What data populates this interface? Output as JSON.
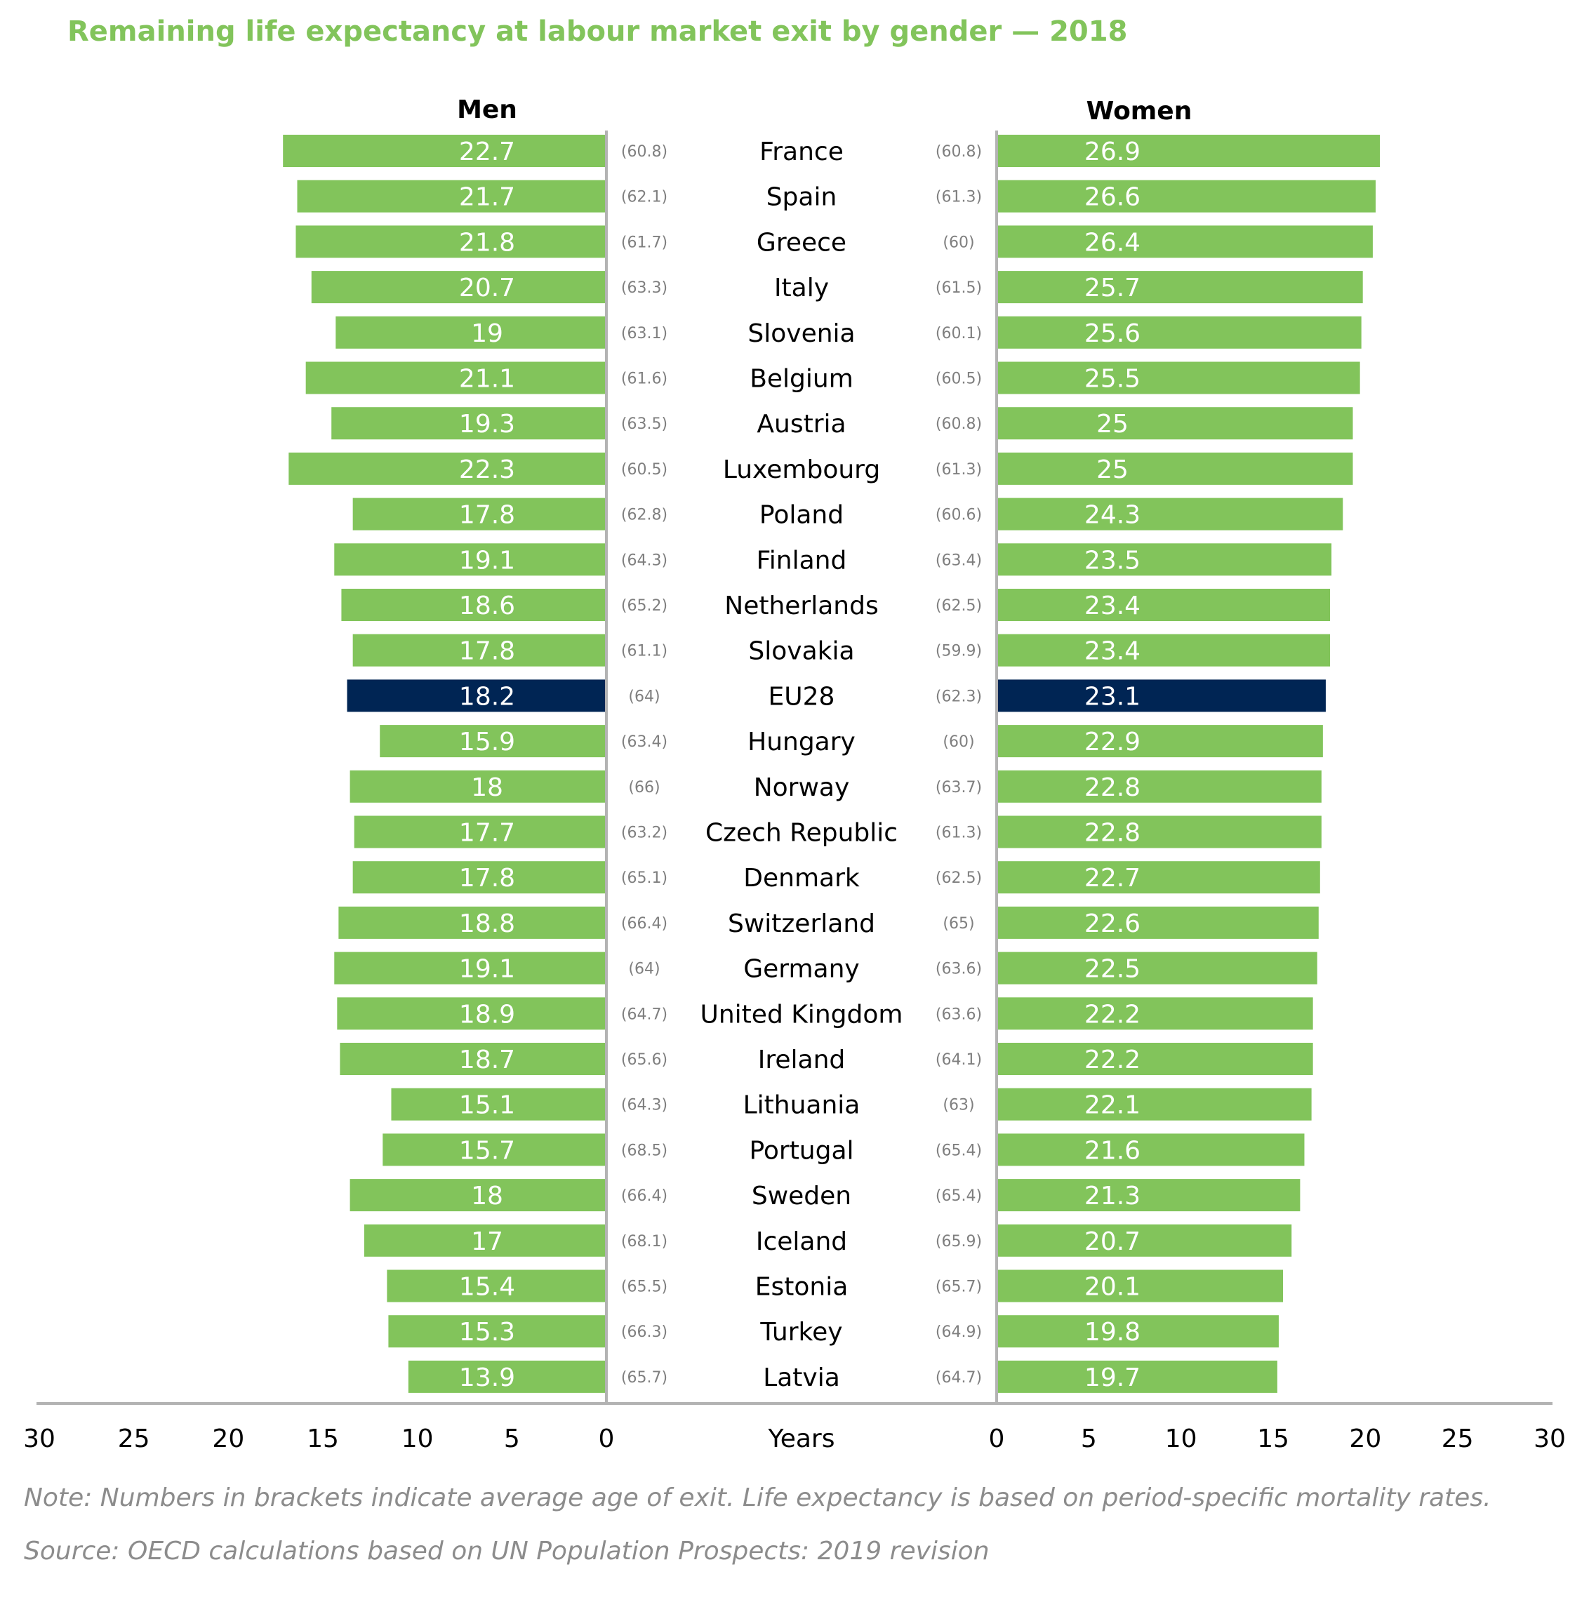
{
  "colors": {
    "accent": "#82c45b",
    "highlight": "#002554",
    "axis": "#b3b3b3",
    "muted": "#7f7f7f",
    "text": "#000000"
  },
  "chart_data": {
    "type": "bar",
    "title": "Remaining life expectancy at labour market exit by gender — 2018",
    "xlabel": "Years",
    "xlim": [
      0,
      30
    ],
    "x_ticks": [
      "30",
      "25",
      "20",
      "15",
      "10",
      "5",
      "0",
      "0",
      "5",
      "10",
      "15",
      "20",
      "25",
      "30"
    ],
    "grid": false,
    "legend": "none",
    "highlighted_category": "EU28",
    "categories": [
      "France",
      "Spain",
      "Greece",
      "Italy",
      "Slovenia",
      "Belgium",
      "Austria",
      "Luxembourg",
      "Poland",
      "Finland",
      "Netherlands",
      "Slovakia",
      "EU28",
      "Hungary",
      "Norway",
      "Czech Republic",
      "Denmark",
      "Switzerland",
      "Germany",
      "United Kingdom",
      "Ireland",
      "Lithuania",
      "Portugal",
      "Sweden",
      "Iceland",
      "Estonia",
      "Turkey",
      "Latvia"
    ],
    "series": [
      {
        "name": "Men",
        "values": [
          22.7,
          21.7,
          21.8,
          20.7,
          19,
          21.1,
          19.3,
          22.3,
          17.8,
          19.1,
          18.6,
          17.8,
          18.2,
          15.9,
          18,
          17.7,
          17.8,
          18.8,
          19.1,
          18.9,
          18.7,
          15.1,
          15.7,
          18,
          17,
          15.4,
          15.3,
          13.9
        ],
        "value_labels": [
          "22.7",
          "21.7",
          "21.8",
          "20.7",
          "19",
          "21.1",
          "19.3",
          "22.3",
          "17.8",
          "19.1",
          "18.6",
          "17.8",
          "18.2",
          "15.9",
          "18",
          "17.7",
          "17.8",
          "18.8",
          "19.1",
          "18.9",
          "18.7",
          "15.1",
          "15.7",
          "18",
          "17",
          "15.4",
          "15.3",
          "13.9"
        ],
        "exit_age_labels": [
          "(60.8)",
          "(62.1)",
          "(61.7)",
          "(63.3)",
          "(63.1)",
          "(61.6)",
          "(63.5)",
          "(60.5)",
          "(62.8)",
          "(64.3)",
          "(65.2)",
          "(61.1)",
          "(64)",
          "(63.4)",
          "(66)",
          "(63.2)",
          "(65.1)",
          "(66.4)",
          "(64)",
          "(64.7)",
          "(65.6)",
          "(64.3)",
          "(68.5)",
          "(66.4)",
          "(68.1)",
          "(65.5)",
          "(66.3)",
          "(65.7)"
        ]
      },
      {
        "name": "Women",
        "values": [
          26.9,
          26.6,
          26.4,
          25.7,
          25.6,
          25.5,
          25,
          25,
          24.3,
          23.5,
          23.4,
          23.4,
          23.1,
          22.9,
          22.8,
          22.8,
          22.7,
          22.6,
          22.5,
          22.2,
          22.2,
          22.1,
          21.6,
          21.3,
          20.7,
          20.1,
          19.8,
          19.7
        ],
        "value_labels": [
          "26.9",
          "26.6",
          "26.4",
          "25.7",
          "25.6",
          "25.5",
          "25",
          "25",
          "24.3",
          "23.5",
          "23.4",
          "23.4",
          "23.1",
          "22.9",
          "22.8",
          "22.8",
          "22.7",
          "22.6",
          "22.5",
          "22.2",
          "22.2",
          "22.1",
          "21.6",
          "21.3",
          "20.7",
          "20.1",
          "19.8",
          "19.7"
        ],
        "exit_age_labels": [
          "(60.8)",
          "(61.3)",
          "(60)",
          "(61.5)",
          "(60.1)",
          "(60.5)",
          "(60.8)",
          "(61.3)",
          "(60.6)",
          "(63.4)",
          "(62.5)",
          "(59.9)",
          "(62.3)",
          "(60)",
          "(63.7)",
          "(61.3)",
          "(62.5)",
          "(65)",
          "(63.6)",
          "(63.6)",
          "(64.1)",
          "(63)",
          "(65.4)",
          "(65.4)",
          "(65.9)",
          "(65.7)",
          "(64.9)",
          "(64.7)"
        ]
      }
    ]
  },
  "footer": {
    "note": "Note: Numbers in brackets indicate average age of exit. Life expectancy is based on period-specific mortality rates.",
    "source": "Source: OECD calculations based on UN Population Prospects: 2019 revision"
  }
}
